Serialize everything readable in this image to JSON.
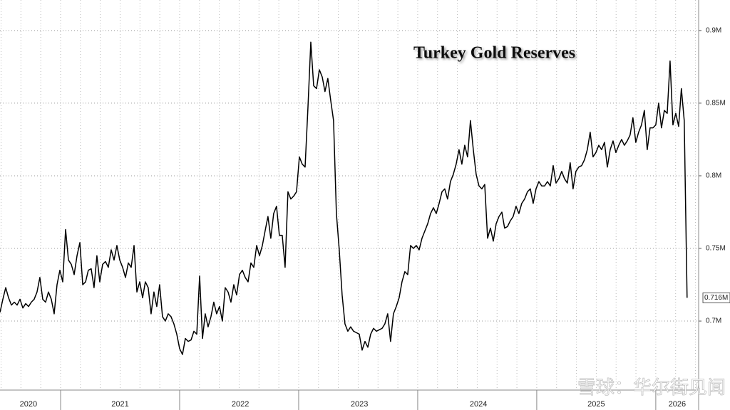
{
  "chart_data": {
    "type": "line",
    "title": "Turkey Gold Reserves",
    "watermark": "雪球：华尔街见闻",
    "xlim": [
      2020.491,
      2026.36
    ],
    "xticks": [
      {
        "value": 2020.73,
        "label": "2020"
      },
      {
        "value": 2021.5,
        "label": "2021"
      },
      {
        "value": 2022.51,
        "label": "2022"
      },
      {
        "value": 2023.51,
        "label": "2023"
      },
      {
        "value": 2024.51,
        "label": "2024"
      },
      {
        "value": 2025.5,
        "label": "2025"
      },
      {
        "value": 2026.18,
        "label": "2026"
      }
    ],
    "ylim": [
      0.6525,
      0.921
    ],
    "yticks": [
      {
        "value": 0.7,
        "label": "0.7M"
      },
      {
        "value": 0.75,
        "label": "0.75M"
      },
      {
        "value": 0.8,
        "label": "0.8M"
      },
      {
        "value": 0.85,
        "label": "0.85M"
      },
      {
        "value": 0.9,
        "label": "0.9M"
      }
    ],
    "grid": true,
    "last_value_label": "0.716M",
    "x": [
      2020.491,
      2020.515,
      2020.539,
      2020.563,
      2020.587,
      2020.611,
      2020.635,
      2020.659,
      2020.683,
      2020.707,
      2020.731,
      2020.754,
      2020.778,
      2020.802,
      2020.826,
      2020.85,
      2020.874,
      2020.898,
      2020.922,
      2020.946,
      2020.97,
      2020.994,
      2021.018,
      2021.042,
      2021.066,
      2021.09,
      2021.114,
      2021.138,
      2021.162,
      2021.186,
      2021.21,
      2021.233,
      2021.257,
      2021.281,
      2021.305,
      2021.329,
      2021.353,
      2021.377,
      2021.401,
      2021.425,
      2021.449,
      2021.473,
      2021.497,
      2021.521,
      2021.545,
      2021.569,
      2021.593,
      2021.617,
      2021.641,
      2021.665,
      2021.689,
      2021.712,
      2021.736,
      2021.76,
      2021.784,
      2021.808,
      2021.832,
      2021.856,
      2021.88,
      2021.904,
      2021.928,
      2021.952,
      2021.976,
      2022.0,
      2022.024,
      2022.048,
      2022.072,
      2022.096,
      2022.12,
      2022.144,
      2022.168,
      2022.192,
      2022.215,
      2022.239,
      2022.263,
      2022.287,
      2022.311,
      2022.335,
      2022.359,
      2022.383,
      2022.407,
      2022.431,
      2022.455,
      2022.479,
      2022.503,
      2022.527,
      2022.551,
      2022.575,
      2022.599,
      2022.623,
      2022.647,
      2022.671,
      2022.695,
      2022.718,
      2022.742,
      2022.766,
      2022.79,
      2022.814,
      2022.838,
      2022.862,
      2022.886,
      2022.91,
      2022.934,
      2022.958,
      2022.982,
      2023.006,
      2023.03,
      2023.054,
      2023.078,
      2023.102,
      2023.126,
      2023.15,
      2023.174,
      2023.198,
      2023.221,
      2023.245,
      2023.269,
      2023.293,
      2023.317,
      2023.341,
      2023.365,
      2023.389,
      2023.413,
      2023.437,
      2023.461,
      2023.485,
      2023.509,
      2023.533,
      2023.557,
      2023.581,
      2023.605,
      2023.629,
      2023.653,
      2023.677,
      2023.701,
      2023.724,
      2023.748,
      2023.772,
      2023.796,
      2023.82,
      2023.844,
      2023.868,
      2023.892,
      2023.916,
      2023.94,
      2023.964,
      2023.988,
      2024.012,
      2024.036,
      2024.06,
      2024.084,
      2024.108,
      2024.132,
      2024.156,
      2024.18,
      2024.204,
      2024.227,
      2024.251,
      2024.275,
      2024.299,
      2024.323,
      2024.347,
      2024.371,
      2024.395,
      2024.419,
      2024.443,
      2024.467,
      2024.491,
      2024.515,
      2024.539,
      2024.563,
      2024.587,
      2024.611,
      2024.635,
      2024.659,
      2024.683,
      2024.707,
      2024.73,
      2024.754,
      2024.778,
      2024.802,
      2024.826,
      2024.85,
      2024.874,
      2024.898,
      2024.922,
      2024.946,
      2024.97,
      2024.994,
      2025.018,
      2025.042,
      2025.066,
      2025.09,
      2025.114,
      2025.138,
      2025.162,
      2025.186,
      2025.21,
      2025.233,
      2025.257,
      2025.281,
      2025.305,
      2025.329,
      2025.353,
      2025.377,
      2025.401,
      2025.425,
      2025.449,
      2025.473,
      2025.497,
      2025.521,
      2025.545,
      2025.569,
      2025.593,
      2025.617,
      2025.641,
      2025.665,
      2025.689,
      2025.713,
      2025.736,
      2025.76,
      2025.784,
      2025.808,
      2025.832,
      2025.856,
      2025.88,
      2025.904,
      2025.928,
      2025.952,
      2025.976,
      2026.0,
      2026.024,
      2026.048,
      2026.072,
      2026.096,
      2026.12,
      2026.144,
      2026.168,
      2026.192,
      2026.215,
      2026.239,
      2026.263
    ],
    "series": [
      {
        "color": "#000000",
        "values": [
          0.706,
          0.715,
          0.723,
          0.716,
          0.711,
          0.713,
          0.711,
          0.715,
          0.709,
          0.712,
          0.71,
          0.713,
          0.715,
          0.72,
          0.73,
          0.715,
          0.713,
          0.72,
          0.715,
          0.705,
          0.725,
          0.735,
          0.727,
          0.763,
          0.742,
          0.739,
          0.732,
          0.745,
          0.754,
          0.725,
          0.727,
          0.735,
          0.736,
          0.723,
          0.745,
          0.727,
          0.739,
          0.741,
          0.737,
          0.749,
          0.742,
          0.752,
          0.742,
          0.737,
          0.73,
          0.74,
          0.737,
          0.752,
          0.72,
          0.727,
          0.716,
          0.727,
          0.723,
          0.705,
          0.72,
          0.71,
          0.725,
          0.703,
          0.7,
          0.705,
          0.703,
          0.698,
          0.691,
          0.681,
          0.677,
          0.688,
          0.686,
          0.687,
          0.693,
          0.691,
          0.731,
          0.688,
          0.705,
          0.696,
          0.703,
          0.713,
          0.705,
          0.71,
          0.7,
          0.723,
          0.72,
          0.713,
          0.725,
          0.718,
          0.732,
          0.735,
          0.73,
          0.727,
          0.74,
          0.737,
          0.752,
          0.745,
          0.752,
          0.762,
          0.772,
          0.757,
          0.774,
          0.779,
          0.759,
          0.759,
          0.737,
          0.789,
          0.784,
          0.786,
          0.789,
          0.813,
          0.808,
          0.806,
          0.847,
          0.892,
          0.862,
          0.86,
          0.873,
          0.868,
          0.858,
          0.867,
          0.852,
          0.838,
          0.774,
          0.749,
          0.718,
          0.698,
          0.693,
          0.696,
          0.693,
          0.692,
          0.691,
          0.68,
          0.686,
          0.682,
          0.691,
          0.695,
          0.693,
          0.694,
          0.695,
          0.698,
          0.705,
          0.686,
          0.705,
          0.71,
          0.716,
          0.727,
          0.734,
          0.732,
          0.752,
          0.75,
          0.752,
          0.749,
          0.757,
          0.762,
          0.767,
          0.774,
          0.778,
          0.774,
          0.781,
          0.789,
          0.791,
          0.784,
          0.796,
          0.801,
          0.808,
          0.818,
          0.808,
          0.821,
          0.813,
          0.838,
          0.818,
          0.801,
          0.793,
          0.791,
          0.794,
          0.757,
          0.764,
          0.755,
          0.767,
          0.772,
          0.775,
          0.764,
          0.765,
          0.769,
          0.772,
          0.779,
          0.774,
          0.781,
          0.784,
          0.789,
          0.791,
          0.781,
          0.791,
          0.796,
          0.793,
          0.793,
          0.796,
          0.793,
          0.807,
          0.795,
          0.798,
          0.803,
          0.798,
          0.795,
          0.809,
          0.791,
          0.803,
          0.806,
          0.807,
          0.811,
          0.818,
          0.83,
          0.813,
          0.816,
          0.821,
          0.818,
          0.823,
          0.806,
          0.818,
          0.824,
          0.816,
          0.821,
          0.825,
          0.821,
          0.824,
          0.828,
          0.84,
          0.823,
          0.83,
          0.835,
          0.845,
          0.818,
          0.833,
          0.833,
          0.835,
          0.85,
          0.833,
          0.845,
          0.843,
          0.879,
          0.835,
          0.843,
          0.834,
          0.86,
          0.838,
          0.716
        ]
      }
    ]
  }
}
